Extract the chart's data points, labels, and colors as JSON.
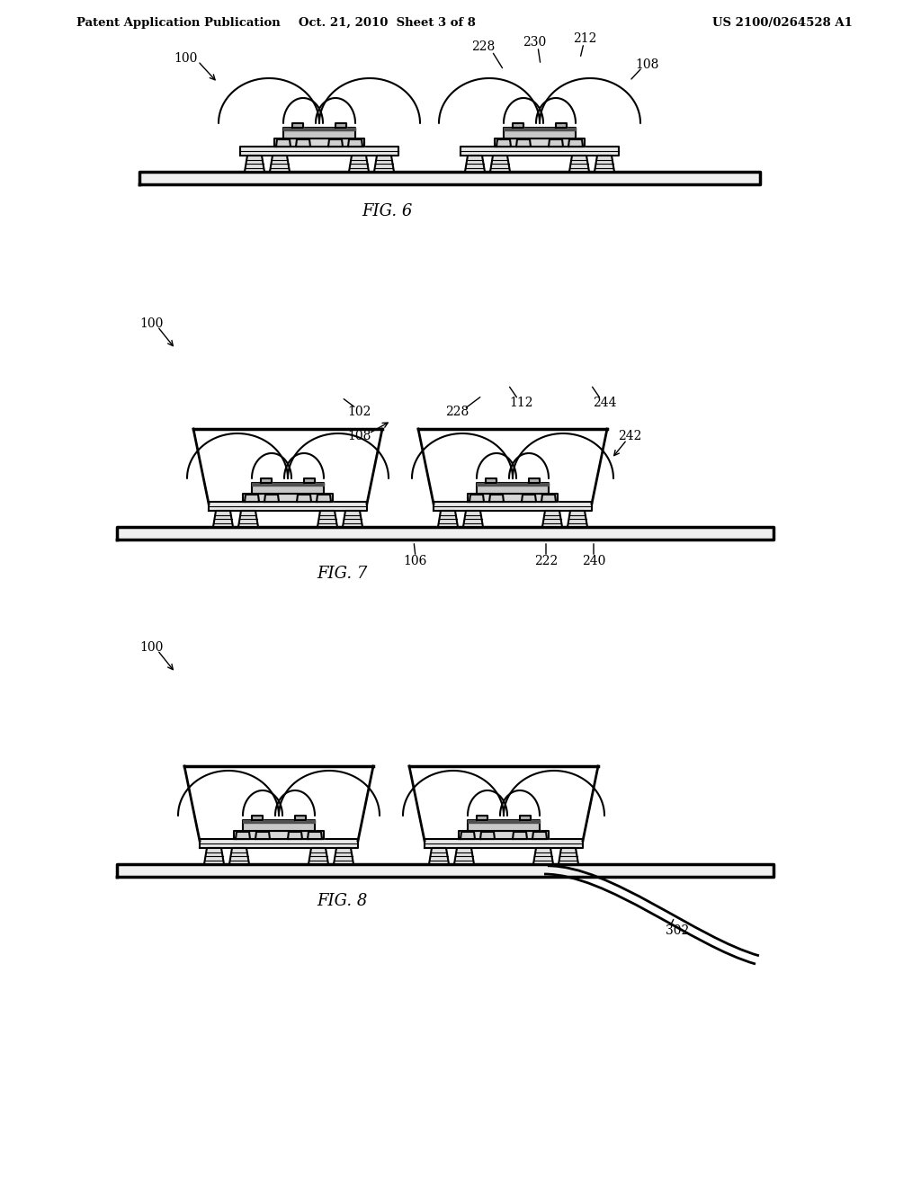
{
  "bg_color": "#ffffff",
  "header_left": "Patent Application Publication",
  "header_mid": "Oct. 21, 2010  Sheet 3 of 8",
  "header_right": "US 2100/0264528 A1",
  "fig6_label": "FIG. 6",
  "fig7_label": "FIG. 7",
  "fig8_label": "FIG. 8",
  "lc": "black",
  "lw": 1.5
}
